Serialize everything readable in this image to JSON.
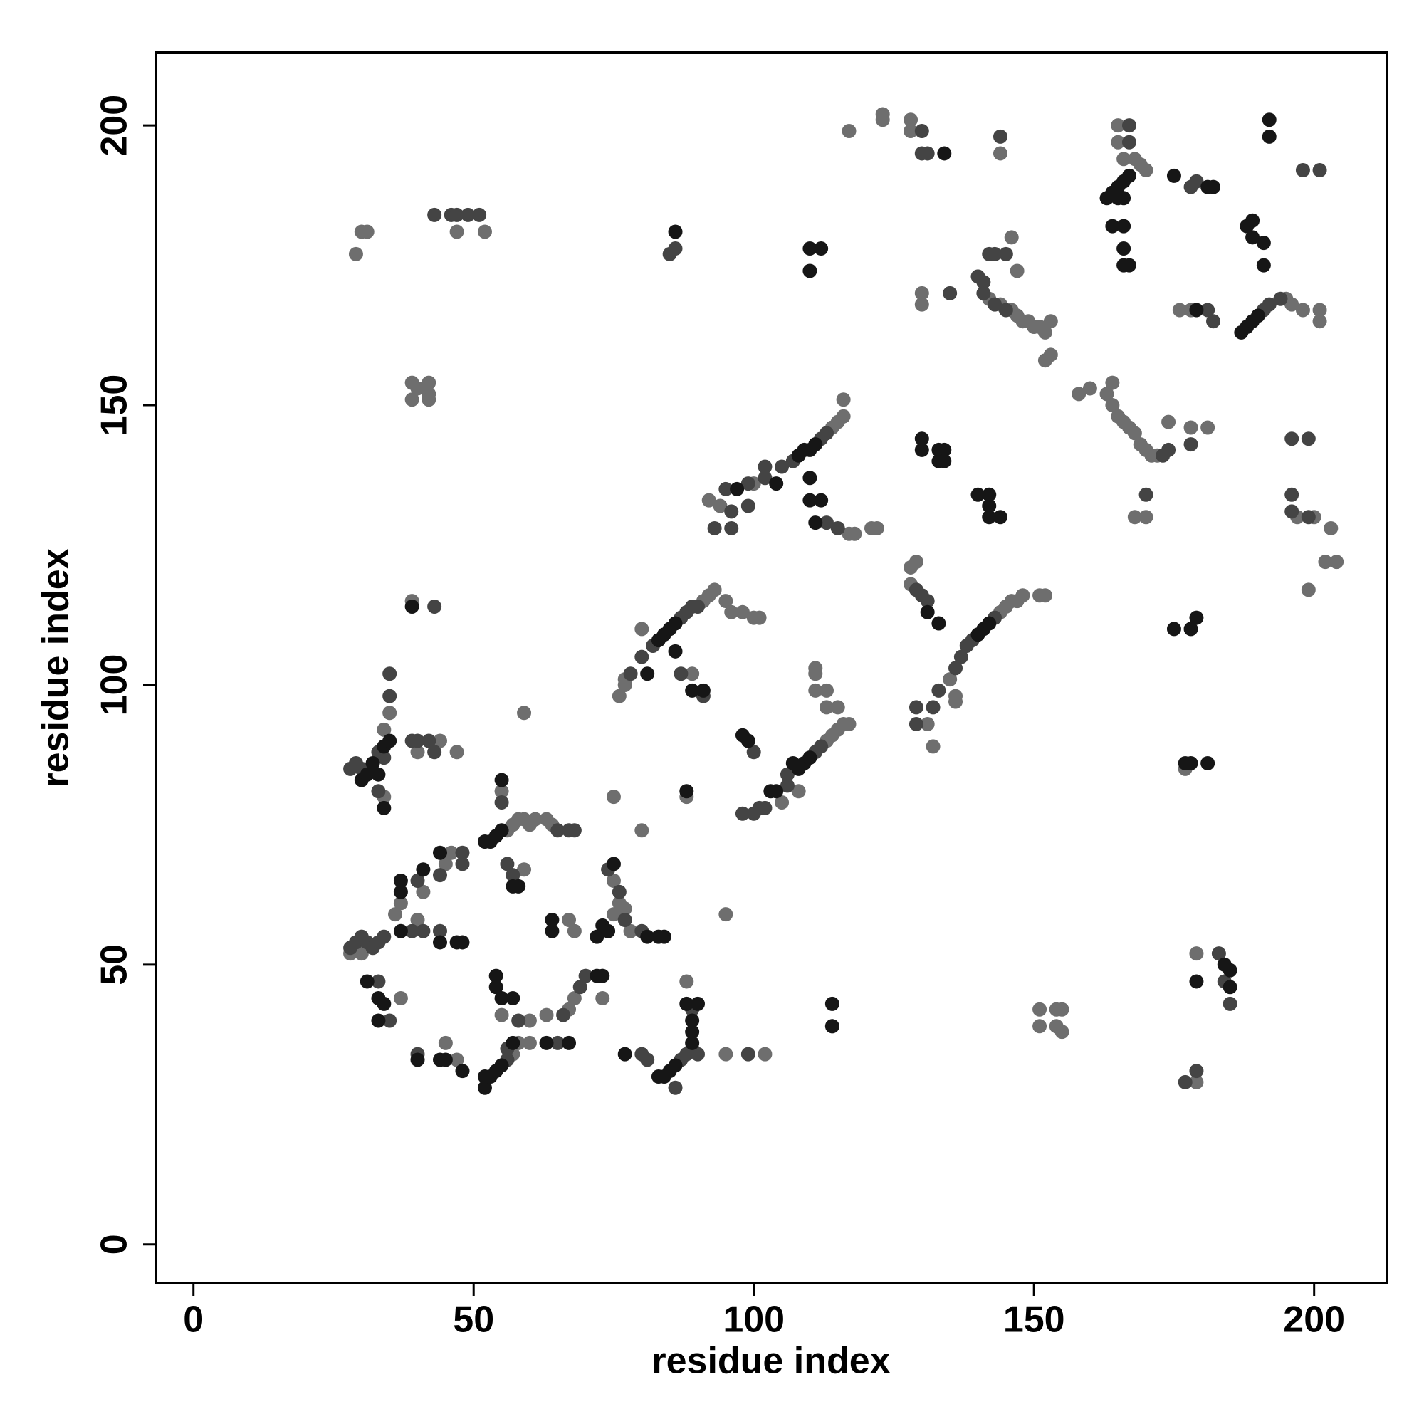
{
  "chart_data": {
    "type": "scatter",
    "x_label": "residue index",
    "y_label": "residue index",
    "xlim": [
      -6.7,
      213
    ],
    "ylim": [
      -6.9,
      213
    ],
    "xticks": [
      0,
      50,
      100,
      150,
      200
    ],
    "yticks": [
      0,
      50,
      100,
      150,
      200
    ],
    "series": [
      {
        "color": "#6e6e6e",
        "x": [
          30,
          31,
          29,
          47,
          52,
          117,
          123,
          123,
          128,
          128,
          144,
          165,
          165,
          166,
          168,
          169,
          170,
          176,
          178,
          195,
          196,
          198,
          201,
          201,
          146,
          142,
          144,
          146,
          147,
          148,
          149,
          150,
          151,
          152,
          153,
          147,
          130,
          130,
          152,
          153,
          39,
          40,
          42,
          42,
          39,
          42,
          100,
          114,
          115,
          116,
          116,
          92,
          94,
          117,
          118,
          121,
          122,
          158,
          160,
          163,
          164,
          164,
          165,
          166,
          167,
          168,
          169,
          170,
          171,
          172,
          174,
          178,
          181,
          168,
          170,
          197,
          200,
          203,
          204,
          202,
          199,
          128,
          129,
          128,
          135,
          144,
          145,
          146,
          147,
          148,
          151,
          152,
          136,
          136,
          131,
          132,
          39,
          77,
          77,
          76,
          91,
          92,
          93,
          95,
          96,
          98,
          100,
          101,
          80,
          89,
          113,
          114,
          115,
          116,
          117,
          115,
          113,
          113,
          111,
          111,
          111,
          108,
          105,
          34,
          35,
          44,
          40,
          47,
          34,
          177,
          88,
          75,
          80,
          59,
          95,
          28,
          30,
          37,
          40,
          41,
          45,
          46,
          45,
          47,
          57,
          58,
          60,
          55,
          60,
          56,
          57,
          58,
          59,
          60,
          61,
          63,
          64,
          55,
          59,
          67,
          68,
          75,
          76,
          75,
          77,
          78,
          63,
          67,
          68,
          73,
          95,
          102,
          88,
          151,
          151,
          154,
          155,
          154,
          155,
          179,
          179,
          36,
          37
        ],
        "values": [
          181,
          181,
          177,
          181,
          181,
          199,
          202,
          201,
          201,
          199,
          195,
          200,
          197,
          194,
          194,
          193,
          192,
          167,
          167,
          169,
          168,
          167,
          167,
          165,
          180,
          169,
          168,
          167,
          166,
          165,
          165,
          164,
          164,
          163,
          165,
          174,
          170,
          168,
          158,
          159,
          154,
          153,
          154,
          152,
          151,
          151,
          136,
          146,
          147,
          148,
          151,
          133,
          132,
          127,
          127,
          128,
          128,
          152,
          153,
          152,
          154,
          150,
          148,
          147,
          146,
          145,
          143,
          142,
          141,
          141,
          147,
          146,
          146,
          130,
          130,
          130,
          130,
          128,
          122,
          122,
          117,
          121,
          122,
          118,
          101,
          113,
          114,
          115,
          115,
          116,
          116,
          116,
          98,
          97,
          93,
          89,
          115,
          100,
          101,
          98,
          115,
          116,
          117,
          115,
          113,
          113,
          112,
          112,
          110,
          102,
          90,
          91,
          92,
          93,
          93,
          96,
          96,
          99,
          99,
          102,
          103,
          81,
          79,
          92,
          95,
          90,
          88,
          88,
          80,
          85,
          80,
          80,
          74,
          95,
          59,
          52,
          52,
          44,
          58,
          63,
          68,
          70,
          36,
          33,
          34,
          36,
          36,
          41,
          40,
          74,
          75,
          76,
          76,
          75,
          76,
          76,
          75,
          81,
          67,
          58,
          56,
          59,
          61,
          65,
          60,
          56,
          41,
          42,
          44,
          44,
          34,
          34,
          47,
          42,
          39,
          42,
          42,
          39,
          38,
          52,
          29,
          59,
          61
        ]
      },
      {
        "color": "#444444",
        "x": [
          43,
          46,
          47,
          49,
          51,
          86,
          85,
          130,
          130,
          131,
          144,
          167,
          167,
          178,
          179,
          198,
          201,
          181,
          182,
          191,
          192,
          194,
          142,
          143,
          145,
          140,
          141,
          141,
          143,
          145,
          135,
          95,
          99,
          102,
          105,
          107,
          112,
          113,
          96,
          99,
          96,
          93,
          102,
          113,
          115,
          170,
          173,
          174,
          178,
          196,
          199,
          196,
          196,
          199,
          129,
          130,
          131,
          136,
          137,
          138,
          139,
          143,
          133,
          132,
          129,
          129,
          43,
          78,
          80,
          82,
          87,
          88,
          89,
          90,
          87,
          91,
          100,
          106,
          102,
          101,
          100,
          98,
          106,
          111,
          112,
          28,
          29,
          30,
          33,
          34,
          35,
          35,
          39,
          40,
          42,
          43,
          33,
          55,
          56,
          57,
          28,
          29,
          30,
          31,
          32,
          33,
          34,
          33,
          35,
          39,
          41,
          44,
          40,
          44,
          48,
          48,
          40,
          56,
          56,
          58,
          65,
          67,
          68,
          76,
          74,
          77,
          80,
          66,
          69,
          70,
          65,
          80,
          81,
          87,
          88,
          89,
          90,
          89,
          86,
          99,
          114,
          183,
          184,
          185,
          177,
          179
        ],
        "values": [
          184,
          184,
          184,
          184,
          184,
          178,
          177,
          199,
          195,
          195,
          198,
          200,
          197,
          189,
          190,
          192,
          192,
          167,
          165,
          167,
          168,
          169,
          177,
          177,
          177,
          173,
          172,
          170,
          168,
          167,
          170,
          135,
          136,
          137,
          139,
          140,
          144,
          145,
          131,
          132,
          128,
          128,
          139,
          129,
          128,
          134,
          141,
          142,
          143,
          144,
          144,
          134,
          131,
          130,
          117,
          116,
          115,
          103,
          105,
          107,
          108,
          112,
          99,
          96,
          96,
          93,
          114,
          102,
          105,
          107,
          112,
          113,
          114,
          114,
          102,
          98,
          88,
          82,
          78,
          78,
          77,
          77,
          84,
          88,
          89,
          85,
          86,
          85,
          88,
          87,
          98,
          102,
          90,
          90,
          90,
          88,
          81,
          79,
          68,
          66,
          53,
          54,
          55,
          54,
          53,
          54,
          55,
          47,
          40,
          56,
          56,
          56,
          65,
          66,
          70,
          68,
          34,
          33,
          35,
          40,
          74,
          74,
          74,
          63,
          67,
          58,
          56,
          41,
          46,
          48,
          36,
          34,
          33,
          33,
          34,
          35,
          34,
          42,
          28,
          34,
          39,
          52,
          47,
          43,
          29,
          31
        ]
      },
      {
        "color": "#161616",
        "x": [
          86,
          110,
          112,
          110,
          134,
          163,
          164,
          165,
          166,
          167,
          165,
          166,
          164,
          166,
          166,
          166,
          167,
          175,
          181,
          182,
          192,
          192,
          188,
          189,
          189,
          191,
          191,
          179,
          187,
          188,
          189,
          190,
          130,
          130,
          133,
          134,
          133,
          134,
          140,
          142,
          142,
          142,
          144,
          108,
          109,
          110,
          111,
          104,
          110,
          110,
          112,
          111,
          97,
          131,
          133,
          140,
          141,
          142,
          175,
          178,
          179,
          39,
          84,
          85,
          86,
          83,
          86,
          81,
          89,
          91,
          98,
          99,
          107,
          108,
          109,
          110,
          104,
          103,
          30,
          31,
          32,
          34,
          35,
          33,
          34,
          181,
          178,
          177,
          88,
          52,
          52,
          53,
          54,
          55,
          31,
          33,
          34,
          33,
          37,
          44,
          47,
          48,
          41,
          37,
          37,
          44,
          40,
          44,
          45,
          48,
          57,
          55,
          57,
          54,
          54,
          52,
          53,
          54,
          55,
          55,
          57,
          58,
          64,
          64,
          72,
          73,
          74,
          75,
          81,
          83,
          84,
          72,
          73,
          67,
          63,
          77,
          83,
          84,
          85,
          86,
          89,
          89,
          89,
          90,
          88,
          114,
          114,
          185,
          184,
          185,
          179
        ],
        "values": [
          181,
          178,
          178,
          174,
          195,
          187,
          188,
          189,
          190,
          191,
          187,
          187,
          182,
          182,
          178,
          175,
          175,
          191,
          189,
          189,
          201,
          198,
          182,
          183,
          180,
          179,
          175,
          167,
          163,
          164,
          165,
          166,
          144,
          142,
          142,
          142,
          140,
          140,
          134,
          134,
          132,
          130,
          130,
          141,
          142,
          142,
          143,
          136,
          137,
          133,
          133,
          129,
          135,
          113,
          111,
          109,
          110,
          111,
          110,
          110,
          112,
          114,
          109,
          110,
          111,
          108,
          106,
          102,
          99,
          99,
          91,
          90,
          86,
          85,
          86,
          87,
          81,
          81,
          83,
          84,
          86,
          89,
          90,
          84,
          78,
          86,
          86,
          86,
          81,
          28,
          30,
          30,
          31,
          32,
          47,
          44,
          43,
          40,
          56,
          54,
          54,
          54,
          67,
          63,
          65,
          70,
          33,
          33,
          33,
          31,
          36,
          44,
          44,
          46,
          48,
          72,
          72,
          73,
          74,
          83,
          64,
          64,
          58,
          56,
          55,
          57,
          56,
          68,
          55,
          55,
          55,
          48,
          48,
          36,
          36,
          34,
          30,
          30,
          31,
          32,
          36,
          38,
          40,
          43,
          43,
          43,
          39,
          49,
          50,
          46,
          47
        ]
      }
    ]
  }
}
